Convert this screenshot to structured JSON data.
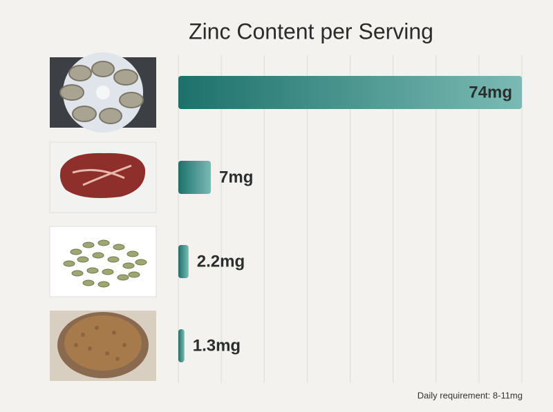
{
  "chart_data": {
    "type": "bar",
    "orientation": "horizontal",
    "title": "Zinc Content per Serving",
    "categories": [
      null,
      null,
      null,
      null
    ],
    "values": [
      74,
      7,
      2.2,
      1.3
    ],
    "value_labels": [
      "74mg",
      "7mg",
      "2.2mg",
      "1.3mg"
    ],
    "color": "#2a7f78",
    "xlim": [
      0,
      74
    ],
    "grid": true,
    "annotation": "Daily requirement: 8-11mg"
  }
}
